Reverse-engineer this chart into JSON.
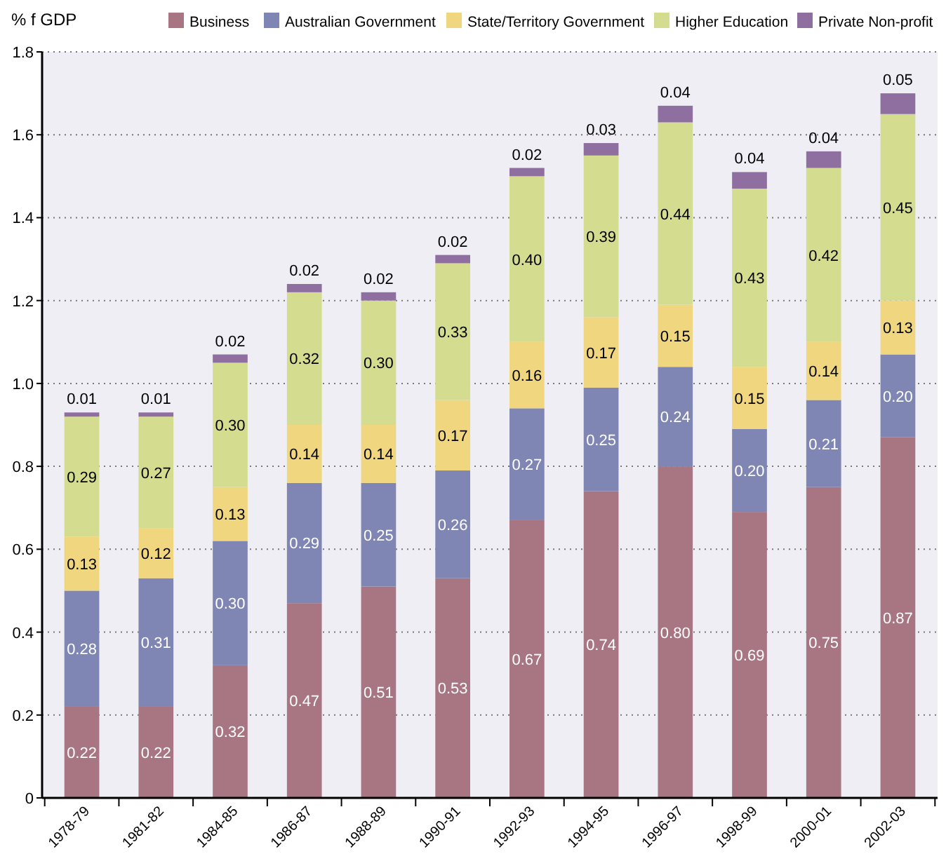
{
  "chart_data": {
    "type": "bar",
    "stacked": true,
    "ylabel": "% f GDP",
    "categories": [
      "1978-79",
      "1981-82",
      "1984-85",
      "1986-87",
      "1988-89",
      "1990-91",
      "1992-93",
      "1994-95",
      "1996-97",
      "1998-99",
      "2000-01",
      "2002-03"
    ],
    "series": [
      {
        "name": "Business",
        "color": "#a87683",
        "values": [
          0.22,
          0.22,
          0.32,
          0.47,
          0.51,
          0.53,
          0.67,
          0.74,
          0.8,
          0.69,
          0.75,
          0.87
        ],
        "value_labels": [
          "0.22",
          "0.22",
          "0.32",
          "0.47",
          "0.51",
          "0.53",
          "0.67",
          "0.74",
          "0.80",
          "0.69",
          "0.75",
          "0.87"
        ]
      },
      {
        "name": "Australian Government",
        "color": "#7f86b4",
        "values": [
          0.28,
          0.31,
          0.3,
          0.29,
          0.25,
          0.26,
          0.27,
          0.25,
          0.24,
          0.2,
          0.21,
          0.2
        ],
        "value_labels": [
          "0.28",
          "0.31",
          "0.30",
          "0.29",
          "0.25",
          "0.26",
          "0.27",
          "0.25",
          "0.24",
          "0.20",
          "0.21",
          "0.20"
        ]
      },
      {
        "name": "State/Territory Government",
        "color": "#f0d67e",
        "values": [
          0.13,
          0.12,
          0.13,
          0.14,
          0.14,
          0.17,
          0.16,
          0.17,
          0.15,
          0.15,
          0.14,
          0.13
        ],
        "value_labels": [
          "0.13",
          "0.12",
          "0.13",
          "0.14",
          "0.14",
          "0.17",
          "0.16",
          "0.17",
          "0.15",
          "0.15",
          "0.14",
          "0.13"
        ]
      },
      {
        "name": "Higher Education",
        "color": "#d4dc8f",
        "values": [
          0.29,
          0.27,
          0.3,
          0.32,
          0.3,
          0.33,
          0.4,
          0.39,
          0.44,
          0.43,
          0.42,
          0.45
        ],
        "value_labels": [
          "0.29",
          "0.27",
          "0.30",
          "0.32",
          "0.30",
          "0.33",
          "0.40",
          "0.39",
          "0.44",
          "0.43",
          "0.42",
          "0.45"
        ]
      },
      {
        "name": "Private Non-profit",
        "color": "#8e6fa0",
        "values": [
          0.01,
          0.01,
          0.02,
          0.02,
          0.02,
          0.02,
          0.02,
          0.03,
          0.04,
          0.04,
          0.04,
          0.05
        ],
        "value_labels": [
          "0.01",
          "0.01",
          "0.02",
          "0.02",
          "0.02",
          "0.02",
          "0.02",
          "0.03",
          "0.04",
          "0.04",
          "0.04",
          "0.05"
        ]
      }
    ],
    "ylim": [
      0,
      1.8
    ],
    "yticks": [
      0,
      {
        "value": 0.2,
        "label": "0.2"
      },
      {
        "value": 0.4,
        "label": "0.4"
      },
      {
        "value": 0.6,
        "label": "0.6"
      },
      {
        "value": 0.8,
        "label": "0.8"
      },
      {
        "value": 1.0,
        "label": "1.0"
      },
      {
        "value": 1.2,
        "label": "1.2"
      },
      {
        "value": 1.4,
        "label": "1.4"
      },
      {
        "value": 1.6,
        "label": "1.6"
      },
      {
        "value": 1.8,
        "label": "1.8"
      }
    ],
    "grid": "y",
    "legend": "top"
  }
}
